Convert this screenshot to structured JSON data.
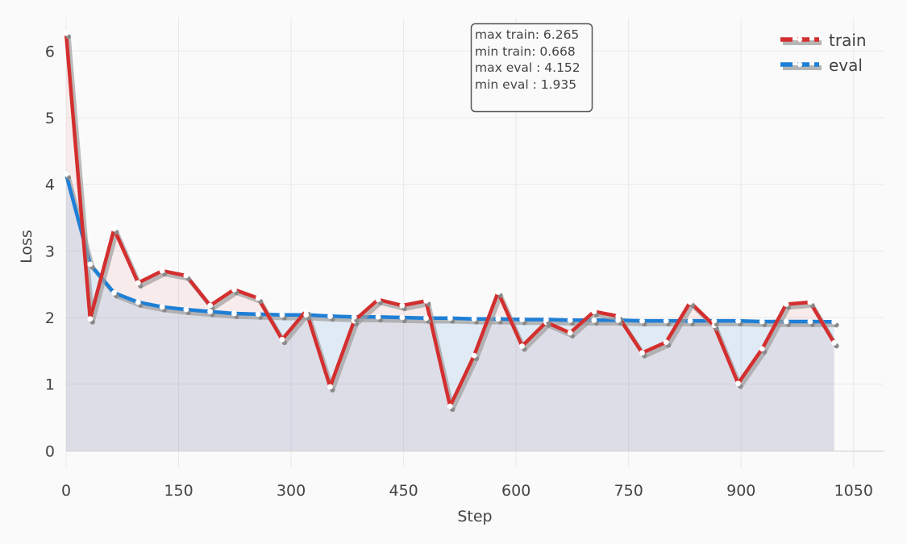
{
  "chart_data": {
    "type": "line",
    "xlabel": "Step",
    "ylabel": "Loss",
    "xlim": [
      0,
      1090
    ],
    "ylim": [
      -0.25,
      6.5
    ],
    "xticks": [
      0,
      150,
      300,
      450,
      600,
      750,
      900,
      1050
    ],
    "yticks": [
      0,
      1,
      2,
      3,
      4,
      5,
      6
    ],
    "grid": true,
    "legend_position": "top-right",
    "series": [
      {
        "name": "train",
        "color": "#d32f2f",
        "x": [
          0,
          32,
          64,
          96,
          128,
          160,
          192,
          224,
          256,
          288,
          320,
          352,
          384,
          416,
          448,
          480,
          512,
          544,
          576,
          608,
          640,
          672,
          704,
          736,
          768,
          800,
          832,
          864,
          896,
          928,
          960,
          992,
          1024
        ],
        "y": [
          6.265,
          1.98,
          3.33,
          2.52,
          2.7,
          2.63,
          2.18,
          2.42,
          2.29,
          1.67,
          2.1,
          0.96,
          1.95,
          2.27,
          2.18,
          2.25,
          0.668,
          1.43,
          2.38,
          1.57,
          1.93,
          1.77,
          2.09,
          2.02,
          1.47,
          1.63,
          2.23,
          1.88,
          1.01,
          1.53,
          2.2,
          2.23,
          1.62
        ]
      },
      {
        "name": "eval",
        "color": "#1e7fd6",
        "x": [
          0,
          32,
          64,
          96,
          128,
          160,
          192,
          224,
          256,
          288,
          320,
          352,
          384,
          416,
          448,
          480,
          512,
          544,
          576,
          608,
          640,
          672,
          704,
          736,
          768,
          800,
          832,
          864,
          896,
          928,
          960,
          992,
          1024
        ],
        "y": [
          4.152,
          2.8,
          2.37,
          2.23,
          2.16,
          2.12,
          2.09,
          2.06,
          2.05,
          2.04,
          2.04,
          2.02,
          2.01,
          2.01,
          2.0,
          1.99,
          1.99,
          1.98,
          1.98,
          1.97,
          1.97,
          1.96,
          1.96,
          1.96,
          1.95,
          1.95,
          1.95,
          1.95,
          1.95,
          1.94,
          1.94,
          1.94,
          1.935
        ]
      }
    ],
    "annotation": [
      "max train: 6.265",
      "min train: 0.668",
      "max eval : 4.152",
      "min eval : 1.935"
    ]
  }
}
